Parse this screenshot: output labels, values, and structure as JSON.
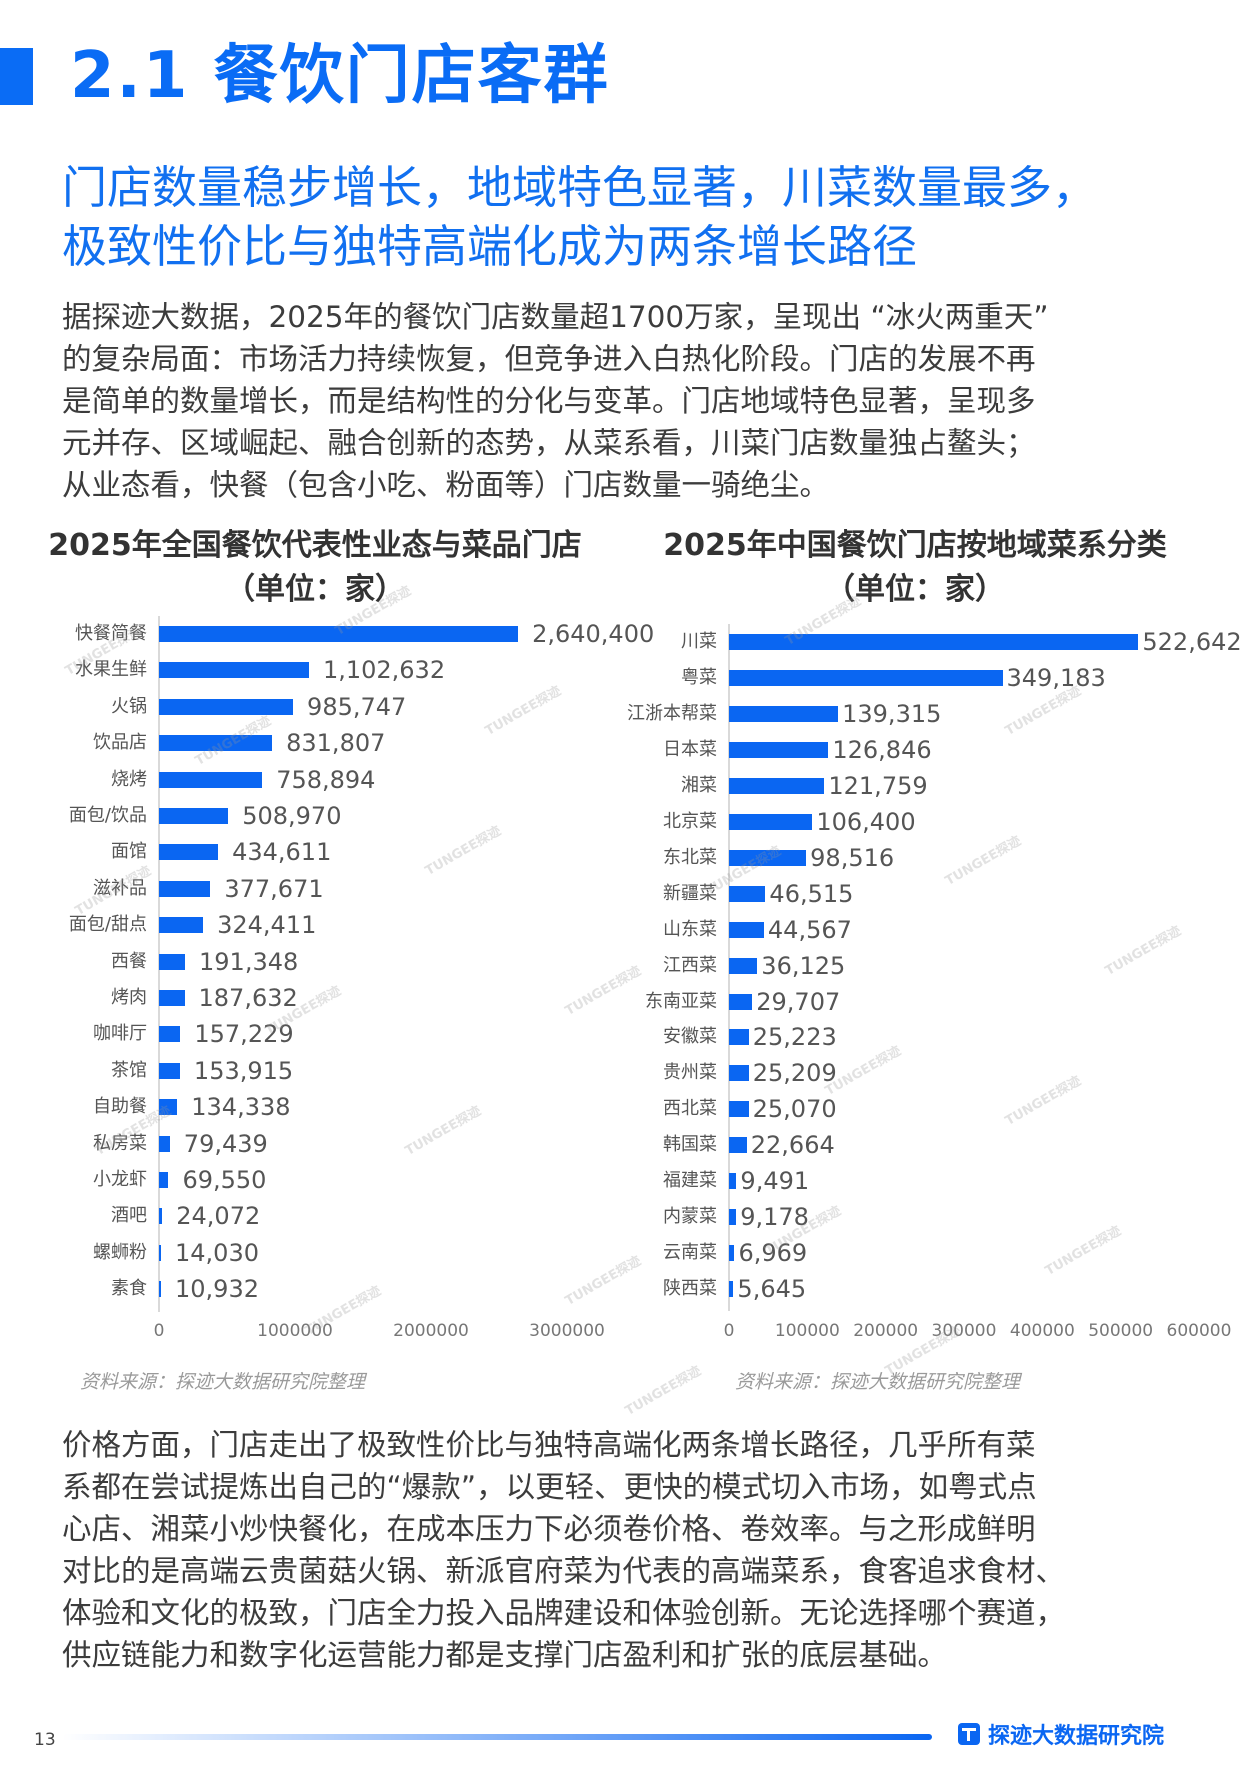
{
  "section": {
    "number": "2.1",
    "title": "2.1 餐饮门店客群",
    "accent_color": "#0a6cf5"
  },
  "headline": {
    "lines": [
      "门店数量稳步增长，地域特色显著，川菜数量最多，",
      "极致性价比与独特高端化成为两条增长路径"
    ]
  },
  "intro": {
    "lines": [
      "据探迹大数据，2025年的餐饮门店数量超1700万家，呈现出 “冰火两重天”",
      "的复杂局面：市场活力持续恢复，但竞争进入白热化阶段。门店的发展不再",
      "是简单的数量增长，而是结构性的分化与变革。门店地域特色显著，呈现多",
      "元并存、区域崛起、融合创新的态势，从菜系看，川菜门店数量独占鳌头；",
      "从业态看，快餐（包含小吃、粉面等）门店数量一骑绝尘。"
    ]
  },
  "chart_data": [
    {
      "type": "bar",
      "orientation": "horizontal",
      "title": "2025年全国餐饮代表性业态与菜品门店",
      "subtitle": "（单位：家）",
      "categories": [
        "快餐简餐",
        "水果生鲜",
        "火锅",
        "饮品店",
        "烧烤",
        "面包/饮品",
        "面馆",
        "滋补品",
        "面包/甜点",
        "西餐",
        "烤肉",
        "咖啡厅",
        "茶馆",
        "自助餐",
        "私房菜",
        "小龙虾",
        "酒吧",
        "螺蛳粉",
        "素食"
      ],
      "values": [
        2640400,
        1102632,
        985747,
        831807,
        758894,
        508970,
        434611,
        377671,
        324411,
        191348,
        187632,
        157229,
        153915,
        134338,
        79439,
        69550,
        24072,
        14030,
        10932
      ],
      "value_labels": [
        "2,640,400",
        "1,102,632",
        "985,747",
        "831,807",
        "758,894",
        "508,970",
        "434,611",
        "377,671",
        "324,411",
        "191,348",
        "187,632",
        "157,229",
        "153,915",
        "134,338",
        "79,439",
        "69,550",
        "24,072",
        "14,030",
        "10,932"
      ],
      "xlabel": "",
      "ylabel": "",
      "xlim": [
        0,
        3000000
      ],
      "xticks": [
        "0",
        "1000000",
        "2000000",
        "3000000"
      ],
      "grid": false,
      "bar_color": "#0a66f2",
      "source": "资料来源：探迹大数据研究院整理"
    },
    {
      "type": "bar",
      "orientation": "horizontal",
      "title": "2025年中国餐饮门店按地域菜系分类",
      "subtitle": "（单位：家）",
      "categories": [
        "川菜",
        "粤菜",
        "江浙本帮菜",
        "日本菜",
        "湘菜",
        "北京菜",
        "东北菜",
        "新疆菜",
        "山东菜",
        "江西菜",
        "东南亚菜",
        "安徽菜",
        "贵州菜",
        "西北菜",
        "韩国菜",
        "福建菜",
        "内蒙菜",
        "云南菜",
        "陕西菜"
      ],
      "values": [
        522642,
        349183,
        139315,
        126846,
        121759,
        106400,
        98516,
        46515,
        44567,
        36125,
        29707,
        25223,
        25209,
        25070,
        22664,
        9491,
        9178,
        6969,
        5645
      ],
      "value_labels": [
        "522,642",
        "349,183",
        "139,315",
        "126,846",
        "121,759",
        "106,400",
        "98,516",
        "46,515",
        "44,567",
        "36,125",
        "29,707",
        "25,223",
        "25,209",
        "25,070",
        "22,664",
        "9,491",
        "9,178",
        "6,969",
        "5,645"
      ],
      "xlabel": "",
      "ylabel": "",
      "xlim": [
        0,
        600000
      ],
      "xticks": [
        "0",
        "100000",
        "200000",
        "300000",
        "400000",
        "500000",
        "600000"
      ],
      "grid": false,
      "bar_color": "#0a66f2",
      "source": "资料来源：探迹大数据研究院整理"
    }
  ],
  "closing": {
    "lines": [
      "价格方面，门店走出了极致性价比与独特高端化两条增长路径，几乎所有菜",
      "系都在尝试提炼出自己的“爆款”，以更轻、更快的模式切入市场，如粤式点",
      "心店、湘菜小炒快餐化，在成本压力下必须卷价格、卷效率。与之形成鲜明",
      "对比的是高端云贵菌菇火锅、新派官府菜为代表的高端菜系，食客追求食材、",
      "体验和文化的极致，门店全力投入品牌建设和体验创新。无论选择哪个赛道，",
      "供应链能力和数字化运营能力都是支撑门店盈利和扩张的底层基础。"
    ]
  },
  "footer": {
    "page_number": "13",
    "brand": "探迹大数据研究院",
    "brand_icon": "tungee-logo-icon"
  },
  "watermark": "TUNGEE探迹"
}
